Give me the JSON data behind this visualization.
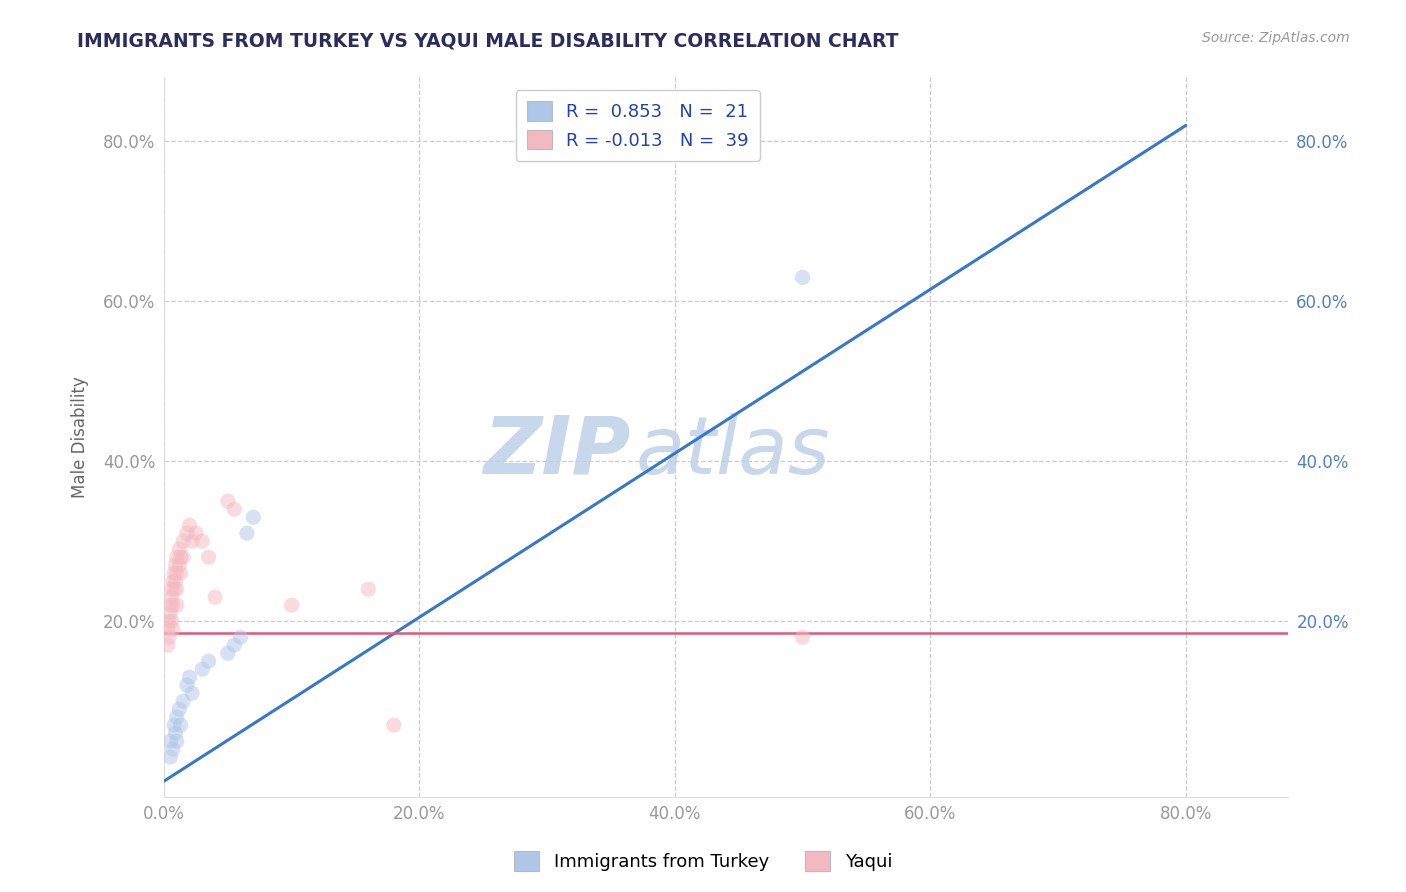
{
  "title": "IMMIGRANTS FROM TURKEY VS YAQUI MALE DISABILITY CORRELATION CHART",
  "source": "Source: ZipAtlas.com",
  "ylabel": "Male Disability",
  "xlim": [
    0.0,
    0.88
  ],
  "ylim": [
    -0.02,
    0.88
  ],
  "x_tick_labels": [
    "0.0%",
    "20.0%",
    "40.0%",
    "60.0%",
    "80.0%"
  ],
  "x_tick_vals": [
    0.0,
    0.2,
    0.4,
    0.6,
    0.8
  ],
  "y_tick_labels": [
    "20.0%",
    "40.0%",
    "60.0%",
    "80.0%"
  ],
  "y_tick_vals": [
    0.2,
    0.4,
    0.6,
    0.8
  ],
  "legend_entries": [
    {
      "label": "Immigrants from Turkey",
      "color": "#aec6e8",
      "R": 0.853,
      "N": 21
    },
    {
      "label": "Yaqui",
      "color": "#f4b8c1",
      "R": -0.013,
      "N": 39
    }
  ],
  "blue_scatter": [
    [
      0.005,
      0.03
    ],
    [
      0.005,
      0.05
    ],
    [
      0.007,
      0.04
    ],
    [
      0.008,
      0.07
    ],
    [
      0.009,
      0.06
    ],
    [
      0.01,
      0.08
    ],
    [
      0.01,
      0.05
    ],
    [
      0.012,
      0.09
    ],
    [
      0.013,
      0.07
    ],
    [
      0.015,
      0.1
    ],
    [
      0.018,
      0.12
    ],
    [
      0.02,
      0.13
    ],
    [
      0.022,
      0.11
    ],
    [
      0.03,
      0.14
    ],
    [
      0.035,
      0.15
    ],
    [
      0.05,
      0.16
    ],
    [
      0.055,
      0.17
    ],
    [
      0.06,
      0.18
    ],
    [
      0.065,
      0.31
    ],
    [
      0.07,
      0.33
    ],
    [
      0.5,
      0.63
    ]
  ],
  "pink_scatter": [
    [
      0.003,
      0.17
    ],
    [
      0.003,
      0.19
    ],
    [
      0.004,
      0.18
    ],
    [
      0.004,
      0.2
    ],
    [
      0.005,
      0.22
    ],
    [
      0.005,
      0.21
    ],
    [
      0.006,
      0.24
    ],
    [
      0.006,
      0.23
    ],
    [
      0.006,
      0.2
    ],
    [
      0.007,
      0.25
    ],
    [
      0.007,
      0.22
    ],
    [
      0.007,
      0.19
    ],
    [
      0.008,
      0.26
    ],
    [
      0.008,
      0.24
    ],
    [
      0.009,
      0.27
    ],
    [
      0.009,
      0.25
    ],
    [
      0.01,
      0.28
    ],
    [
      0.01,
      0.26
    ],
    [
      0.01,
      0.24
    ],
    [
      0.01,
      0.22
    ],
    [
      0.012,
      0.29
    ],
    [
      0.012,
      0.27
    ],
    [
      0.013,
      0.28
    ],
    [
      0.013,
      0.26
    ],
    [
      0.015,
      0.3
    ],
    [
      0.015,
      0.28
    ],
    [
      0.018,
      0.31
    ],
    [
      0.02,
      0.32
    ],
    [
      0.022,
      0.3
    ],
    [
      0.025,
      0.31
    ],
    [
      0.03,
      0.3
    ],
    [
      0.035,
      0.28
    ],
    [
      0.04,
      0.23
    ],
    [
      0.05,
      0.35
    ],
    [
      0.055,
      0.34
    ],
    [
      0.1,
      0.22
    ],
    [
      0.16,
      0.24
    ],
    [
      0.18,
      0.07
    ],
    [
      0.5,
      0.18
    ]
  ],
  "blue_line_x": [
    0.0,
    0.8
  ],
  "blue_line_y": [
    0.0,
    0.82
  ],
  "pink_line_x": [
    0.0,
    0.88
  ],
  "pink_line_y": [
    0.185,
    0.185
  ],
  "scatter_size": 120,
  "scatter_alpha": 0.5,
  "line_color_blue": "#3878c8",
  "line_color_pink": "#e05878",
  "title_color": "#2c2c5e",
  "axis_color": "#999999",
  "grid_color": "#cccccc",
  "right_tick_color": "#5080c8",
  "background_color": "#ffffff"
}
